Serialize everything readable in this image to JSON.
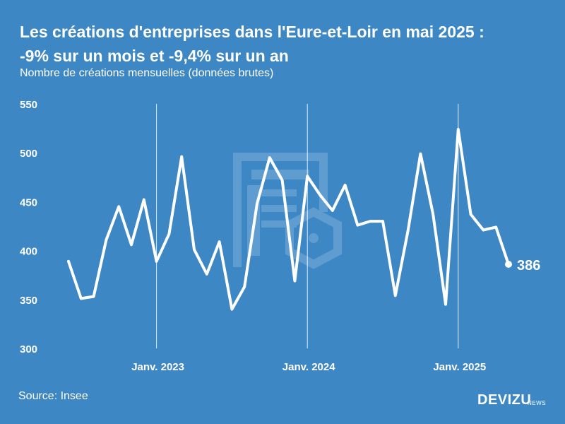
{
  "header": {
    "title_line1": "Les créations d'entreprises dans l'Eure-et-Loir en mai 2025 :",
    "title_line2": "-9% sur un mois et -9,4% sur un an",
    "subtitle": "Nombre de créations mensuelles (données brutes)"
  },
  "footer": {
    "source": "Source: Insee",
    "brand": "DEVIZU",
    "brand_suffix": "NEWS"
  },
  "colors": {
    "background": "#3d87c4",
    "line": "#ffffff",
    "watermark": "#5f9dd0"
  },
  "chart_data": {
    "type": "line",
    "title": "Les créations d'entreprises dans l'Eure-et-Loir en mai 2025 : -9% sur un mois et -9,4% sur un an",
    "subtitle": "Nombre de créations mensuelles (données brutes)",
    "ylim": [
      300,
      550
    ],
    "yticks": [
      300,
      350,
      400,
      450,
      500,
      550
    ],
    "x_tick_labels": [
      {
        "label": "Janv. 2023",
        "index": 7
      },
      {
        "label": "Janv. 2024",
        "index": 19
      },
      {
        "label": "Janv. 2025",
        "index": 31
      }
    ],
    "grid": "vertical lines at January",
    "x": [
      "2022-06",
      "2022-07",
      "2022-08",
      "2022-09",
      "2022-10",
      "2022-11",
      "2022-12",
      "2023-01",
      "2023-02",
      "2023-03",
      "2023-04",
      "2023-05",
      "2023-06",
      "2023-07",
      "2023-08",
      "2023-09",
      "2023-10",
      "2023-11",
      "2023-12",
      "2024-01",
      "2024-02",
      "2024-03",
      "2024-04",
      "2024-05",
      "2024-06",
      "2024-07",
      "2024-08",
      "2024-09",
      "2024-10",
      "2024-11",
      "2024-12",
      "2025-01",
      "2025-02",
      "2025-03",
      "2025-04",
      "2025-05"
    ],
    "values": [
      389,
      351,
      353,
      411,
      445,
      406,
      452,
      389,
      417,
      496,
      401,
      376,
      409,
      340,
      363,
      448,
      495,
      472,
      369,
      476,
      457,
      441,
      467,
      426,
      430,
      430,
      354,
      420,
      499,
      437,
      345,
      524,
      437,
      421,
      424,
      386
    ],
    "last_value_label": "386"
  }
}
